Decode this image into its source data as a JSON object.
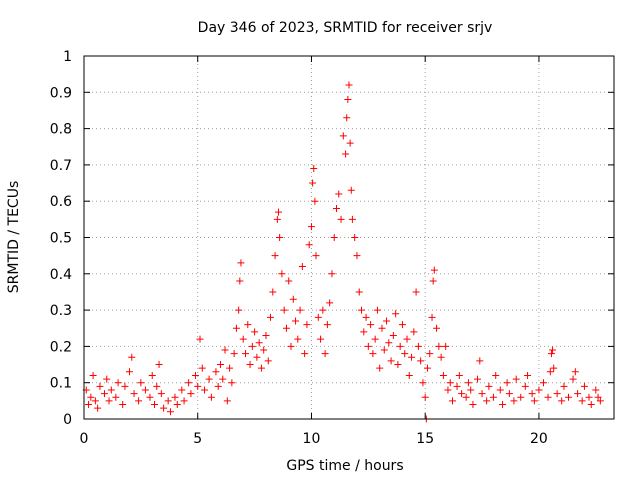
{
  "chart_data": {
    "type": "scatter",
    "title": "Day 346 of 2023, SRMTID for receiver srjv",
    "xlabel": "GPS time / hours",
    "ylabel": "SRMTID / TECUs",
    "xlim": [
      0,
      23.3
    ],
    "ylim": [
      0,
      1
    ],
    "grid": true,
    "marker": "+",
    "color": "#ff0000",
    "x_ticks": [
      0,
      5,
      10,
      15,
      20
    ],
    "x_tick_labels": [
      "0",
      "5",
      "10",
      "15",
      "20"
    ],
    "y_ticks": [
      0,
      0.1,
      0.2,
      0.3,
      0.4,
      0.5,
      0.6,
      0.7,
      0.8,
      0.9,
      1
    ],
    "y_tick_labels": [
      "0",
      "0.1",
      "0.2",
      "0.3",
      "0.4",
      "0.5",
      "0.6",
      "0.7",
      "0.8",
      "0.9",
      "1"
    ],
    "series": [
      {
        "name": "SRMTID",
        "points": [
          [
            0.1,
            0.08
          ],
          [
            0.2,
            0.04
          ],
          [
            0.3,
            0.06
          ],
          [
            0.4,
            0.12
          ],
          [
            0.5,
            0.05
          ],
          [
            0.6,
            0.03
          ],
          [
            0.7,
            0.09
          ],
          [
            0.9,
            0.07
          ],
          [
            1.0,
            0.11
          ],
          [
            1.1,
            0.05
          ],
          [
            1.2,
            0.08
          ],
          [
            1.4,
            0.06
          ],
          [
            1.5,
            0.1
          ],
          [
            1.7,
            0.04
          ],
          [
            1.8,
            0.09
          ],
          [
            2.0,
            0.13
          ],
          [
            2.1,
            0.17
          ],
          [
            2.2,
            0.07
          ],
          [
            2.4,
            0.05
          ],
          [
            2.5,
            0.1
          ],
          [
            2.7,
            0.08
          ],
          [
            2.9,
            0.06
          ],
          [
            3.0,
            0.12
          ],
          [
            3.1,
            0.04
          ],
          [
            3.2,
            0.09
          ],
          [
            3.3,
            0.15
          ],
          [
            3.4,
            0.07
          ],
          [
            3.5,
            0.03
          ],
          [
            3.7,
            0.05
          ],
          [
            3.8,
            0.02
          ],
          [
            4.0,
            0.06
          ],
          [
            4.1,
            0.04
          ],
          [
            4.3,
            0.08
          ],
          [
            4.4,
            0.05
          ],
          [
            4.6,
            0.1
          ],
          [
            4.7,
            0.07
          ],
          [
            4.9,
            0.12
          ],
          [
            5.0,
            0.09
          ],
          [
            5.1,
            0.22
          ],
          [
            5.2,
            0.14
          ],
          [
            5.3,
            0.08
          ],
          [
            5.5,
            0.11
          ],
          [
            5.6,
            0.06
          ],
          [
            5.8,
            0.13
          ],
          [
            5.9,
            0.09
          ],
          [
            6.0,
            0.15
          ],
          [
            6.1,
            0.11
          ],
          [
            6.2,
            0.19
          ],
          [
            6.3,
            0.05
          ],
          [
            6.4,
            0.14
          ],
          [
            6.5,
            0.1
          ],
          [
            6.6,
            0.18
          ],
          [
            6.7,
            0.25
          ],
          [
            6.8,
            0.3
          ],
          [
            6.85,
            0.38
          ],
          [
            6.9,
            0.43
          ],
          [
            7.0,
            0.22
          ],
          [
            7.1,
            0.18
          ],
          [
            7.2,
            0.26
          ],
          [
            7.3,
            0.15
          ],
          [
            7.4,
            0.2
          ],
          [
            7.5,
            0.24
          ],
          [
            7.6,
            0.17
          ],
          [
            7.7,
            0.21
          ],
          [
            7.8,
            0.14
          ],
          [
            7.9,
            0.19
          ],
          [
            8.0,
            0.23
          ],
          [
            8.1,
            0.16
          ],
          [
            8.2,
            0.28
          ],
          [
            8.3,
            0.35
          ],
          [
            8.4,
            0.45
          ],
          [
            8.5,
            0.55
          ],
          [
            8.55,
            0.57
          ],
          [
            8.6,
            0.5
          ],
          [
            8.7,
            0.4
          ],
          [
            8.8,
            0.3
          ],
          [
            8.9,
            0.25
          ],
          [
            9.0,
            0.38
          ],
          [
            9.1,
            0.2
          ],
          [
            9.2,
            0.33
          ],
          [
            9.3,
            0.27
          ],
          [
            9.4,
            0.22
          ],
          [
            9.5,
            0.3
          ],
          [
            9.6,
            0.42
          ],
          [
            9.7,
            0.18
          ],
          [
            9.8,
            0.26
          ],
          [
            9.9,
            0.48
          ],
          [
            10.0,
            0.53
          ],
          [
            10.05,
            0.65
          ],
          [
            10.1,
            0.69
          ],
          [
            10.15,
            0.6
          ],
          [
            10.2,
            0.45
          ],
          [
            10.3,
            0.28
          ],
          [
            10.4,
            0.22
          ],
          [
            10.5,
            0.3
          ],
          [
            10.6,
            0.18
          ],
          [
            10.7,
            0.26
          ],
          [
            10.8,
            0.32
          ],
          [
            10.9,
            0.4
          ],
          [
            11.0,
            0.5
          ],
          [
            11.1,
            0.58
          ],
          [
            11.2,
            0.62
          ],
          [
            11.3,
            0.55
          ],
          [
            11.4,
            0.78
          ],
          [
            11.5,
            0.73
          ],
          [
            11.55,
            0.83
          ],
          [
            11.6,
            0.88
          ],
          [
            11.65,
            0.92
          ],
          [
            11.7,
            0.76
          ],
          [
            11.75,
            0.63
          ],
          [
            11.8,
            0.55
          ],
          [
            11.9,
            0.5
          ],
          [
            12.0,
            0.45
          ],
          [
            12.1,
            0.35
          ],
          [
            12.2,
            0.3
          ],
          [
            12.3,
            0.24
          ],
          [
            12.4,
            0.28
          ],
          [
            12.5,
            0.2
          ],
          [
            12.6,
            0.26
          ],
          [
            12.7,
            0.18
          ],
          [
            12.8,
            0.22
          ],
          [
            12.9,
            0.3
          ],
          [
            13.0,
            0.14
          ],
          [
            13.1,
            0.25
          ],
          [
            13.2,
            0.19
          ],
          [
            13.3,
            0.27
          ],
          [
            13.4,
            0.21
          ],
          [
            13.5,
            0.16
          ],
          [
            13.6,
            0.23
          ],
          [
            13.7,
            0.29
          ],
          [
            13.8,
            0.15
          ],
          [
            13.9,
            0.2
          ],
          [
            14.0,
            0.26
          ],
          [
            14.1,
            0.18
          ],
          [
            14.2,
            0.22
          ],
          [
            14.3,
            0.12
          ],
          [
            14.4,
            0.17
          ],
          [
            14.5,
            0.24
          ],
          [
            14.6,
            0.35
          ],
          [
            14.7,
            0.2
          ],
          [
            14.8,
            0.16
          ],
          [
            14.9,
            0.1
          ],
          [
            15.0,
            0.06
          ],
          [
            15.05,
            0.0
          ],
          [
            15.1,
            0.14
          ],
          [
            15.2,
            0.18
          ],
          [
            15.3,
            0.28
          ],
          [
            15.35,
            0.38
          ],
          [
            15.4,
            0.41
          ],
          [
            15.5,
            0.25
          ],
          [
            15.6,
            0.2
          ],
          [
            15.7,
            0.17
          ],
          [
            15.8,
            0.12
          ],
          [
            15.9,
            0.2
          ],
          [
            16.0,
            0.08
          ],
          [
            16.1,
            0.1
          ],
          [
            16.2,
            0.05
          ],
          [
            16.4,
            0.09
          ],
          [
            16.5,
            0.12
          ],
          [
            16.6,
            0.07
          ],
          [
            16.8,
            0.06
          ],
          [
            16.9,
            0.1
          ],
          [
            17.0,
            0.08
          ],
          [
            17.1,
            0.04
          ],
          [
            17.3,
            0.11
          ],
          [
            17.4,
            0.16
          ],
          [
            17.5,
            0.07
          ],
          [
            17.7,
            0.05
          ],
          [
            17.8,
            0.09
          ],
          [
            18.0,
            0.06
          ],
          [
            18.1,
            0.12
          ],
          [
            18.3,
            0.08
          ],
          [
            18.4,
            0.04
          ],
          [
            18.6,
            0.1
          ],
          [
            18.7,
            0.07
          ],
          [
            18.9,
            0.05
          ],
          [
            19.0,
            0.11
          ],
          [
            19.2,
            0.06
          ],
          [
            19.4,
            0.09
          ],
          [
            19.5,
            0.12
          ],
          [
            19.7,
            0.07
          ],
          [
            19.8,
            0.05
          ],
          [
            20.0,
            0.08
          ],
          [
            20.2,
            0.1
          ],
          [
            20.4,
            0.06
          ],
          [
            20.5,
            0.13
          ],
          [
            20.55,
            0.18
          ],
          [
            20.6,
            0.19
          ],
          [
            20.65,
            0.14
          ],
          [
            20.8,
            0.07
          ],
          [
            21.0,
            0.05
          ],
          [
            21.1,
            0.09
          ],
          [
            21.3,
            0.06
          ],
          [
            21.5,
            0.11
          ],
          [
            21.6,
            0.13
          ],
          [
            21.7,
            0.07
          ],
          [
            21.9,
            0.05
          ],
          [
            22.0,
            0.09
          ],
          [
            22.2,
            0.06
          ],
          [
            22.3,
            0.04
          ],
          [
            22.5,
            0.08
          ],
          [
            22.6,
            0.06
          ],
          [
            22.7,
            0.05
          ]
        ]
      }
    ]
  }
}
